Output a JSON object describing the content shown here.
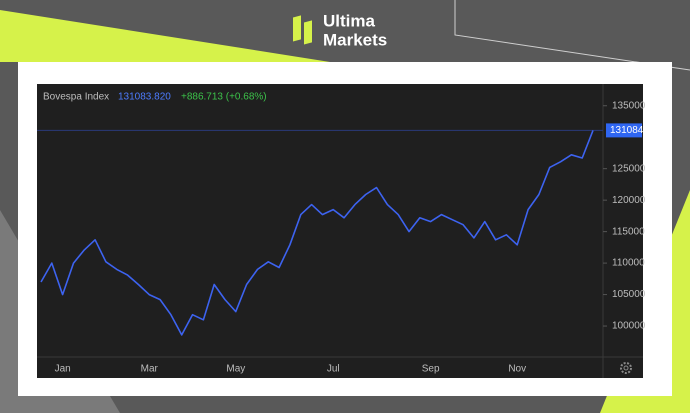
{
  "brand": {
    "line1": "Ultima",
    "line2": "Markets"
  },
  "chart_data": {
    "type": "line",
    "title": "Bovespa Index",
    "last_price": "131083.820",
    "change": "+886.713 (+0.68%)",
    "last_value_label": "131084",
    "categories": [
      null,
      null,
      "Jan",
      null,
      null,
      null,
      null,
      null,
      null,
      null,
      "Mar",
      null,
      null,
      null,
      null,
      null,
      null,
      null,
      "May",
      null,
      null,
      null,
      null,
      null,
      null,
      null,
      null,
      "Jul",
      null,
      null,
      null,
      null,
      null,
      null,
      null,
      null,
      "Sep",
      null,
      null,
      null,
      null,
      null,
      null,
      null,
      "Nov",
      null,
      null,
      null,
      null,
      null,
      null,
      null
    ],
    "series": [
      {
        "name": "Bovespa Index",
        "color": "#3d63f0",
        "values": [
          107000,
          110000,
          105000,
          110000,
          112100,
          113700,
          110200,
          109000,
          108100,
          106600,
          105000,
          104200,
          101800,
          98600,
          101800,
          101000,
          106600,
          104200,
          102300,
          106600,
          109000,
          110200,
          109300,
          112900,
          117700,
          119300,
          117700,
          118500,
          117200,
          119300,
          120900,
          122000,
          119300,
          117700,
          115000,
          117200,
          116600,
          117700,
          116900,
          116100,
          114000,
          116600,
          113700,
          114500,
          112900,
          118500,
          120900,
          125200,
          126100,
          127200,
          126700,
          131083.82
        ]
      }
    ],
    "ylim": [
      95400,
      137500
    ],
    "yticks": [
      100000,
      105000,
      110000,
      115000,
      120000,
      125000,
      135000
    ],
    "grid": false
  }
}
